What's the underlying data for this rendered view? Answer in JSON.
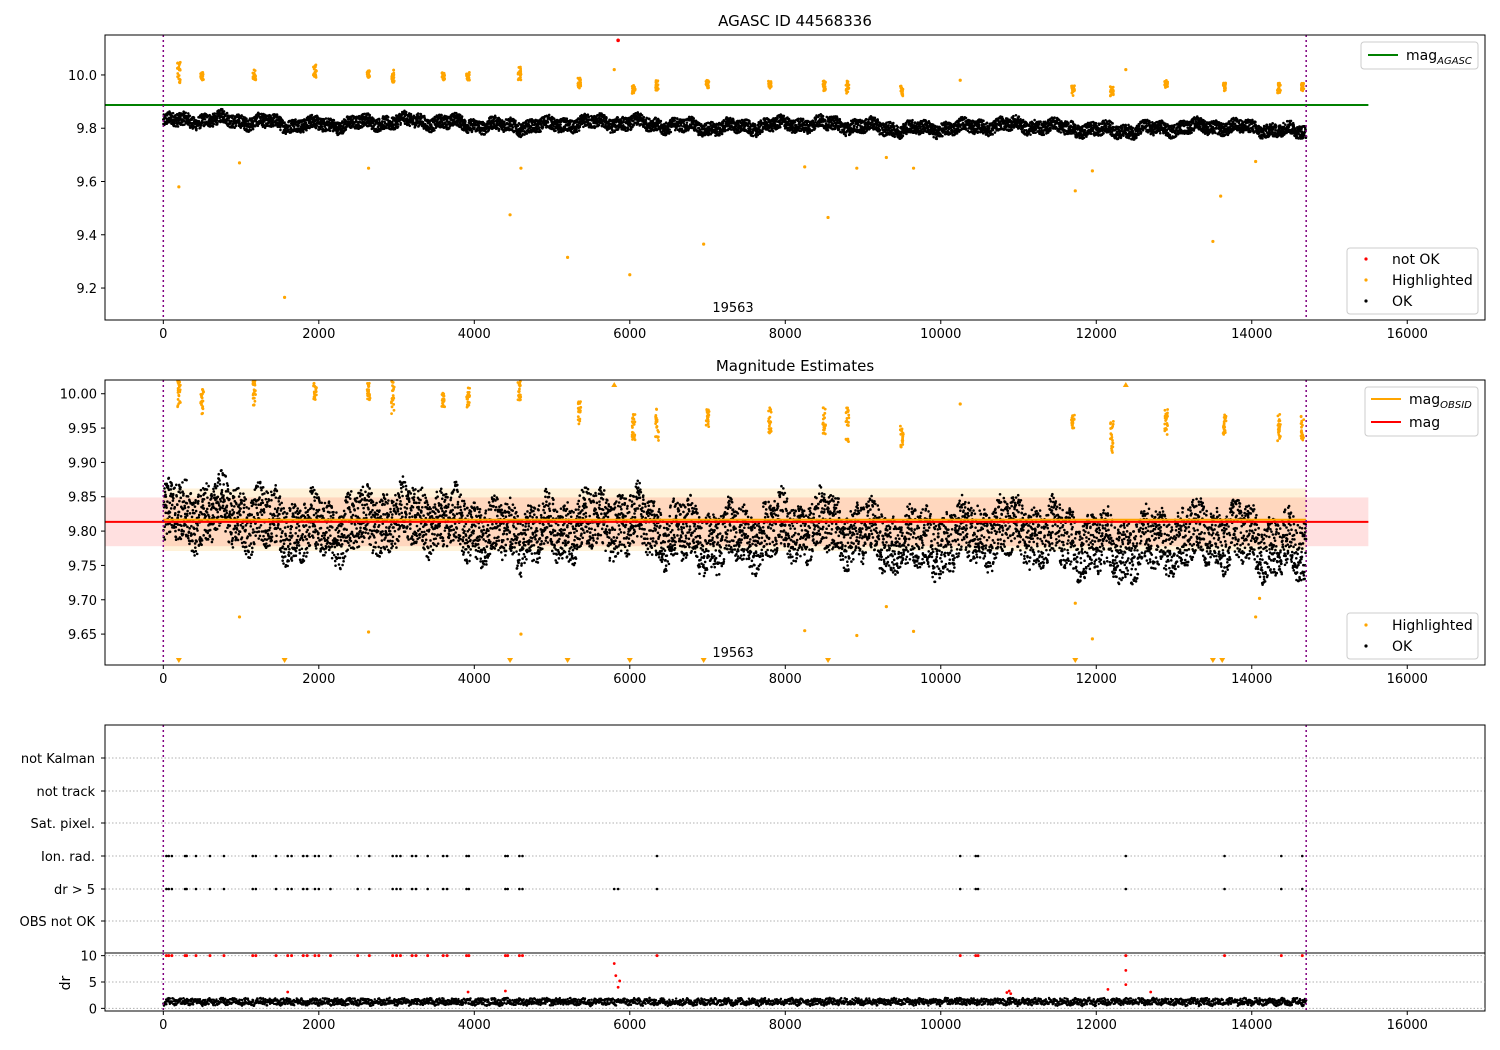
{
  "chart_data": [
    {
      "type": "scatter",
      "title": "AGASC ID 44568336",
      "xlim": [
        -750,
        17000
      ],
      "ylim": [
        9.08,
        10.15
      ],
      "xticks": [
        0,
        2000,
        4000,
        6000,
        8000,
        10000,
        12000,
        14000,
        16000
      ],
      "yticks": [
        9.2,
        9.4,
        9.6,
        9.8,
        10.0
      ],
      "annotation": {
        "x": 7300,
        "y": 9.1,
        "text": "19563"
      },
      "vlines": [
        0,
        14700
      ],
      "hlines": [
        {
          "name": "mag_AGASC",
          "y": 9.887,
          "x": [
            -750,
            15500
          ],
          "color": "#008000"
        }
      ],
      "legend_lines": [
        "mag_AGASC"
      ],
      "legend_points": [
        "not OK",
        "Highlighted",
        "OK"
      ],
      "ok_band": {
        "x": [
          0,
          14700
        ],
        "mean": 9.825,
        "amplitude": 0.045,
        "trend": -2e-06
      },
      "highlighted_clusters": [
        {
          "x": 200,
          "y": [
            9.97,
            10.05
          ]
        },
        {
          "x": 500,
          "y": [
            9.98,
            10.01
          ]
        },
        {
          "x": 1170,
          "y": [
            9.98,
            10.02
          ]
        },
        {
          "x": 1950,
          "y": [
            9.99,
            10.04
          ]
        },
        {
          "x": 2640,
          "y": [
            9.99,
            10.02
          ]
        },
        {
          "x": 2950,
          "y": [
            9.97,
            10.02
          ]
        },
        {
          "x": 3600,
          "y": [
            9.98,
            10.01
          ]
        },
        {
          "x": 3920,
          "y": [
            9.98,
            10.01
          ]
        },
        {
          "x": 4580,
          "y": [
            9.98,
            10.03
          ]
        },
        {
          "x": 5350,
          "y": [
            9.95,
            9.99
          ]
        },
        {
          "x": 6050,
          "y": [
            9.93,
            9.97
          ]
        },
        {
          "x": 6350,
          "y": [
            9.94,
            9.98
          ]
        },
        {
          "x": 7000,
          "y": [
            9.95,
            9.98
          ]
        },
        {
          "x": 7800,
          "y": [
            9.95,
            9.98
          ]
        },
        {
          "x": 8500,
          "y": [
            9.94,
            9.98
          ]
        },
        {
          "x": 8800,
          "y": [
            9.93,
            9.98
          ]
        },
        {
          "x": 9500,
          "y": [
            9.92,
            9.96
          ]
        },
        {
          "x": 11700,
          "y": [
            9.92,
            9.96
          ]
        },
        {
          "x": 12200,
          "y": [
            9.92,
            9.96
          ]
        },
        {
          "x": 12900,
          "y": [
            9.95,
            9.98
          ]
        },
        {
          "x": 13650,
          "y": [
            9.94,
            9.97
          ]
        },
        {
          "x": 14350,
          "y": [
            9.93,
            9.97
          ]
        },
        {
          "x": 14650,
          "y": [
            9.94,
            9.97
          ]
        }
      ],
      "highlighted_outliers": [
        [
          200,
          9.58
        ],
        [
          1560,
          9.165
        ],
        [
          980,
          9.67
        ],
        [
          2640,
          9.65
        ],
        [
          4460,
          9.475
        ],
        [
          4600,
          9.65
        ],
        [
          5200,
          9.315
        ],
        [
          5800,
          10.02
        ],
        [
          6000,
          9.25
        ],
        [
          6950,
          9.365
        ],
        [
          8250,
          9.655
        ],
        [
          8550,
          9.465
        ],
        [
          8920,
          9.65
        ],
        [
          9300,
          9.69
        ],
        [
          9650,
          9.65
        ],
        [
          10250,
          9.98
        ],
        [
          11730,
          9.565
        ],
        [
          11950,
          9.64
        ],
        [
          12380,
          10.02
        ],
        [
          13500,
          9.375
        ],
        [
          13600,
          9.545
        ],
        [
          14050,
          9.675
        ]
      ],
      "not_ok_points": [
        [
          5850,
          10.13
        ]
      ]
    },
    {
      "type": "scatter",
      "title": "Magnitude Estimates",
      "xlim": [
        -750,
        17000
      ],
      "ylim": [
        9.605,
        10.02
      ],
      "xticks": [
        0,
        2000,
        4000,
        6000,
        8000,
        10000,
        12000,
        14000,
        16000
      ],
      "yticks": [
        9.65,
        9.7,
        9.75,
        9.8,
        9.85,
        9.9,
        9.95,
        10.0
      ],
      "annotation": {
        "x": 7300,
        "y": 9.612,
        "text": "19563"
      },
      "vlines": [
        0,
        14700
      ],
      "hlines": [
        {
          "name": "mag_OBSID",
          "y": 9.8165,
          "x": [
            0,
            14700
          ],
          "color": "#ffa500"
        },
        {
          "name": "mag",
          "y": 9.8135,
          "x": [
            -750,
            15500
          ],
          "color": "#ff0000"
        }
      ],
      "bands": [
        {
          "y": [
            9.778,
            9.849
          ],
          "x": [
            -750,
            15500
          ],
          "color": "#ff0000",
          "alpha": 0.12
        },
        {
          "y": [
            9.771,
            9.862
          ],
          "x": [
            0,
            14700
          ],
          "color": "#ffa500",
          "alpha": 0.15
        }
      ],
      "legend_lines": [
        "mag_OBSID",
        "mag"
      ],
      "legend_points": [
        "Highlighted",
        "OK"
      ],
      "ok_band": {
        "x": [
          0,
          14700
        ],
        "mean": 9.818,
        "amplitude": 0.06,
        "trend": -2.5e-06
      },
      "highlighted_clusters": [
        {
          "x": 200,
          "y": [
            9.98,
            10.02
          ]
        },
        {
          "x": 500,
          "y": [
            9.97,
            10.01
          ]
        },
        {
          "x": 1170,
          "y": [
            9.98,
            10.02
          ]
        },
        {
          "x": 1950,
          "y": [
            9.99,
            10.02
          ]
        },
        {
          "x": 2640,
          "y": [
            9.99,
            10.02
          ]
        },
        {
          "x": 2950,
          "y": [
            9.97,
            10.02
          ]
        },
        {
          "x": 3600,
          "y": [
            9.98,
            10.01
          ]
        },
        {
          "x": 3920,
          "y": [
            9.98,
            10.01
          ]
        },
        {
          "x": 4580,
          "y": [
            9.99,
            10.02
          ]
        },
        {
          "x": 5350,
          "y": [
            9.95,
            9.99
          ]
        },
        {
          "x": 6050,
          "y": [
            9.93,
            9.97
          ]
        },
        {
          "x": 6350,
          "y": [
            9.93,
            9.98
          ]
        },
        {
          "x": 7000,
          "y": [
            9.95,
            9.98
          ]
        },
        {
          "x": 7800,
          "y": [
            9.94,
            9.98
          ]
        },
        {
          "x": 8500,
          "y": [
            9.94,
            9.98
          ]
        },
        {
          "x": 8800,
          "y": [
            9.93,
            9.98
          ]
        },
        {
          "x": 9500,
          "y": [
            9.92,
            9.96
          ]
        },
        {
          "x": 11700,
          "y": [
            9.95,
            9.97
          ]
        },
        {
          "x": 12200,
          "y": [
            9.91,
            9.96
          ]
        },
        {
          "x": 12900,
          "y": [
            9.94,
            9.98
          ]
        },
        {
          "x": 13650,
          "y": [
            9.94,
            9.97
          ]
        },
        {
          "x": 14350,
          "y": [
            9.93,
            9.97
          ]
        },
        {
          "x": 14650,
          "y": [
            9.93,
            9.97
          ]
        }
      ],
      "highlighted_outliers": [
        [
          980,
          9.675
        ],
        [
          2640,
          9.653
        ],
        [
          4600,
          9.65
        ],
        [
          8250,
          9.655
        ],
        [
          8920,
          9.648
        ],
        [
          9300,
          9.69
        ],
        [
          9650,
          9.654
        ],
        [
          10250,
          9.985
        ],
        [
          11730,
          9.695
        ],
        [
          11950,
          9.643
        ],
        [
          14050,
          9.675
        ],
        [
          14100,
          9.702
        ]
      ],
      "arrows_down": [
        200,
        1560,
        4460,
        5200,
        6000,
        6950,
        8550,
        11730,
        13500,
        13620
      ],
      "arrows_up": [
        5800,
        12380
      ]
    },
    {
      "type": "scatter",
      "title": "",
      "xlim": [
        -750,
        17000
      ],
      "xticks": [
        0,
        2000,
        4000,
        6000,
        8000,
        10000,
        12000,
        14000,
        16000
      ],
      "vlines": [
        0,
        14700
      ],
      "flag_rows": [
        "not Kalman",
        "not track",
        "Sat. pixel.",
        "Ion. rad.",
        "dr > 5",
        "OBS not OK"
      ],
      "flag_points": {
        "Ion. rad.": [
          40,
          70,
          110,
          280,
          300,
          420,
          600,
          780,
          1150,
          1190,
          1450,
          1600,
          1650,
          1800,
          1850,
          1950,
          2000,
          2150,
          2500,
          2650,
          2950,
          3000,
          3050,
          3200,
          3250,
          3400,
          3600,
          3650,
          3900,
          3930,
          4400,
          4430,
          4580,
          4620,
          6350,
          10250,
          10450,
          10480,
          12380,
          13650,
          14380,
          14650
        ],
        "dr > 5": [
          40,
          70,
          110,
          280,
          300,
          420,
          600,
          780,
          1150,
          1190,
          1450,
          1600,
          1650,
          1800,
          1850,
          1950,
          2000,
          2150,
          2500,
          2650,
          2950,
          3000,
          3050,
          3200,
          3250,
          3400,
          3600,
          3650,
          3900,
          3930,
          4400,
          4430,
          4580,
          4620,
          5800,
          5850,
          6350,
          10250,
          10450,
          10480,
          12380,
          13650,
          14380,
          14650
        ]
      },
      "dr": {
        "ylabel": "dr",
        "ylim": [
          -0.5,
          10.5
        ],
        "yticks": [
          0,
          5,
          10
        ],
        "baseline": {
          "mean": 1.0,
          "amplitude": 0.6
        },
        "red_at_10": [
          40,
          70,
          110,
          280,
          300,
          420,
          600,
          780,
          1150,
          1190,
          1450,
          1600,
          1650,
          1800,
          1850,
          1950,
          2000,
          2150,
          2500,
          2650,
          2950,
          3000,
          3050,
          3200,
          3250,
          3400,
          3600,
          3650,
          3900,
          3930,
          4400,
          4430,
          4580,
          4620,
          6350,
          10250,
          10450,
          10480,
          12380,
          13650,
          14380,
          14650
        ],
        "red_other": [
          [
            5800,
            8.5
          ],
          [
            5820,
            6.2
          ],
          [
            5850,
            4.0
          ],
          [
            5870,
            5.2
          ],
          [
            12380,
            7.2
          ],
          [
            12380,
            4.5
          ],
          [
            12150,
            3.6
          ],
          [
            12700,
            3.1
          ],
          [
            3920,
            3.1
          ],
          [
            4400,
            3.3
          ],
          [
            1600,
            3.1
          ],
          [
            10850,
            3.0
          ],
          [
            10880,
            3.3
          ],
          [
            10900,
            2.8
          ]
        ]
      }
    }
  ]
}
